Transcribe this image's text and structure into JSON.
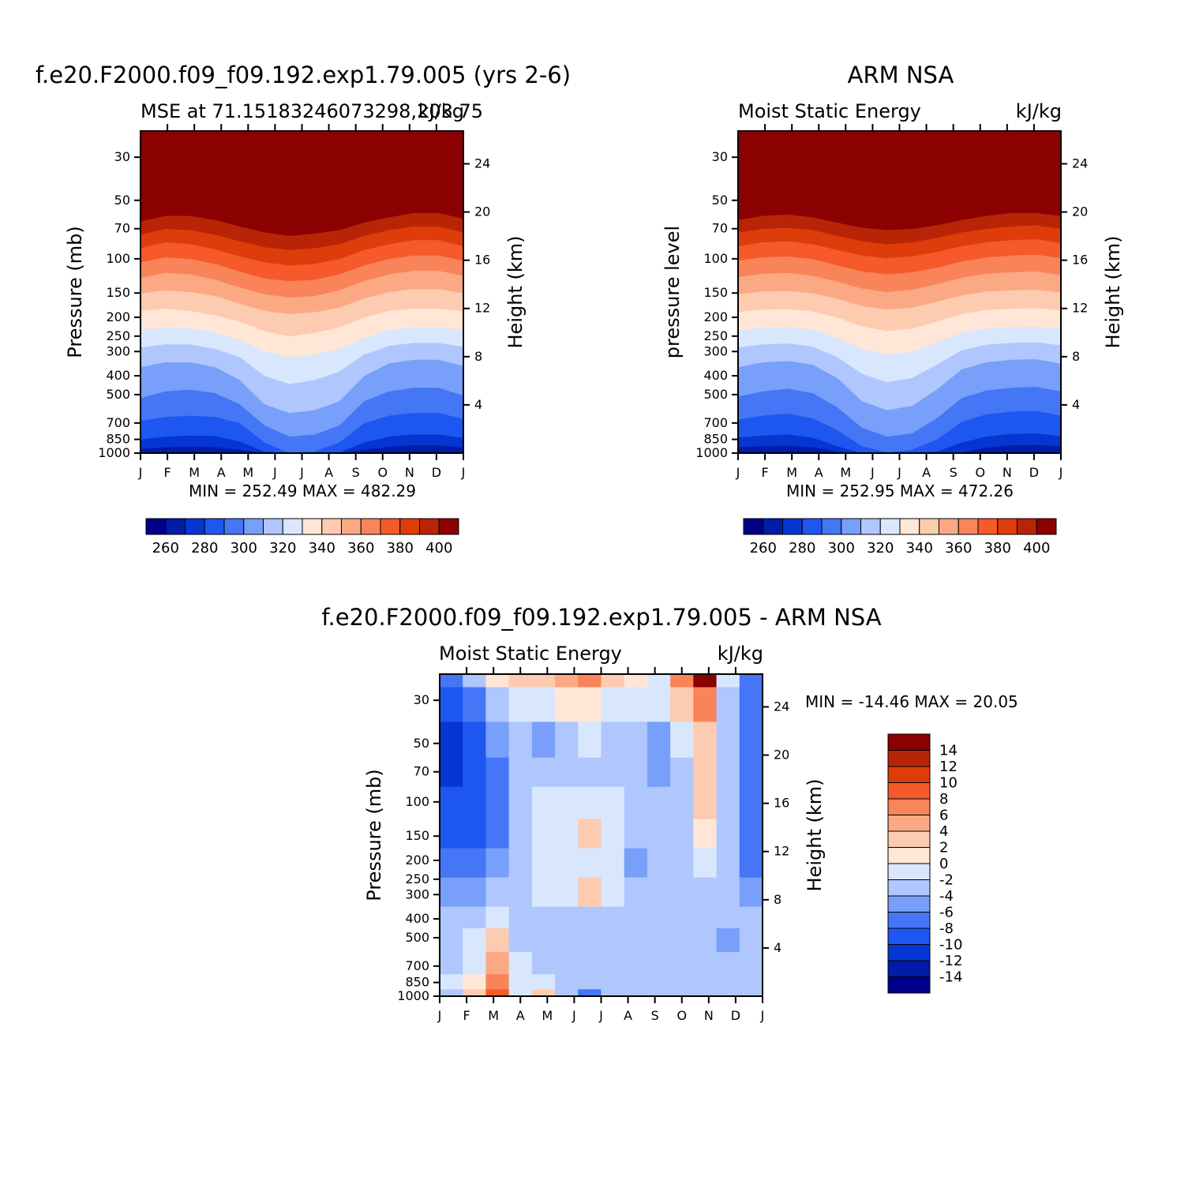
{
  "colors": {
    "mse_levels": [
      "#00008a",
      "#001ca8",
      "#0536d1",
      "#1e56f0",
      "#4476f5",
      "#789ff9",
      "#b0c7fd",
      "#d9e7fe",
      "#ffe6d6",
      "#fdcbb0",
      "#fba985",
      "#f9845a",
      "#f65a2a",
      "#df3c0b",
      "#b82406",
      "#8b0000"
    ],
    "diff_levels": [
      "#00008a",
      "#001ca8",
      "#0536d1",
      "#1e56f0",
      "#4476f5",
      "#789ff9",
      "#b0c7fd",
      "#d9e7fe",
      "#ffe6d6",
      "#fdcbb0",
      "#fba985",
      "#f9845a",
      "#f65a2a",
      "#df3c0b",
      "#b82406",
      "#8b0000"
    ]
  },
  "chart_data": [
    {
      "id": "model",
      "type": "heatmap",
      "title": "f.e20.F2000.f09_f09.192.exp1.79.005 (yrs 2-6)",
      "subtitle_left": "MSE at 71.15183246073298,203.75",
      "subtitle_right": "kJ/kg",
      "ylabel": "Pressure (mb)",
      "y2label": "Height (km)",
      "x_ticks": [
        "J",
        "F",
        "M",
        "A",
        "M",
        "J",
        "J",
        "A",
        "S",
        "O",
        "N",
        "D",
        "J"
      ],
      "y_ticks": [
        30,
        50,
        70,
        100,
        150,
        200,
        250,
        300,
        400,
        500,
        700,
        850,
        1000
      ],
      "y2_ticks": [
        4,
        8,
        12,
        16,
        20,
        24
      ],
      "minmax": "MIN = 252.49 MAX = 482.29",
      "colorbar": {
        "levels": [
          255,
          260,
          265,
          270,
          275,
          280,
          285,
          290,
          295,
          300,
          305,
          310,
          315,
          320,
          325,
          330,
          335,
          340,
          345,
          350,
          355,
          360,
          365,
          370,
          375,
          380,
          385,
          390,
          395,
          400
        ],
        "labels": [
          "260",
          "280",
          "300",
          "320",
          "340",
          "360",
          "380",
          "400"
        ]
      },
      "level_bounds_mb": [
        [
          1000,
          990,
          990,
          990,
          995,
          1000,
          1000,
          1000,
          1000,
          1000,
          995,
          985,
          985,
          990
        ],
        [
          950,
          930,
          925,
          930,
          960,
          1000,
          1000,
          1000,
          1000,
          960,
          925,
          910,
          910,
          935
        ],
        [
          850,
          820,
          810,
          815,
          870,
          980,
          1000,
          1000,
          990,
          880,
          820,
          800,
          800,
          835
        ],
        [
          680,
          650,
          640,
          650,
          700,
          880,
          1000,
          980,
          880,
          700,
          640,
          620,
          620,
          665
        ],
        [
          520,
          480,
          470,
          490,
          560,
          720,
          820,
          800,
          720,
          540,
          480,
          460,
          460,
          505
        ],
        [
          360,
          340,
          340,
          360,
          420,
          560,
          620,
          600,
          540,
          400,
          345,
          330,
          330,
          355
        ],
        [
          285,
          275,
          275,
          290,
          320,
          400,
          440,
          420,
          380,
          310,
          280,
          270,
          270,
          283
        ],
        [
          230,
          225,
          228,
          240,
          260,
          300,
          320,
          310,
          290,
          255,
          232,
          225,
          225,
          231
        ],
        [
          185,
          180,
          185,
          195,
          210,
          235,
          250,
          240,
          225,
          200,
          185,
          180,
          180,
          186
        ],
        [
          150,
          145,
          148,
          155,
          170,
          185,
          192,
          188,
          178,
          160,
          148,
          143,
          143,
          150
        ],
        [
          125,
          118,
          120,
          128,
          140,
          152,
          158,
          155,
          145,
          130,
          120,
          115,
          115,
          122
        ],
        [
          104,
          98,
          100,
          106,
          116,
          126,
          130,
          128,
          120,
          108,
          100,
          96,
          96,
          102
        ],
        [
          88,
          82,
          84,
          89,
          97,
          104,
          108,
          106,
          100,
          90,
          84,
          80,
          80,
          86
        ],
        [
          75,
          70,
          71,
          75,
          81,
          87,
          90,
          88,
          84,
          76,
          71,
          68,
          68,
          73
        ],
        [
          64,
          60,
          60,
          63,
          68,
          73,
          76,
          74,
          71,
          65,
          61,
          58,
          58,
          62
        ]
      ]
    },
    {
      "id": "obs",
      "type": "heatmap",
      "title": "ARM NSA",
      "subtitle_left": "Moist Static Energy",
      "subtitle_right": "kJ/kg",
      "ylabel": "pressure level",
      "y2label": "Height (km)",
      "x_ticks": [
        "J",
        "F",
        "M",
        "A",
        "M",
        "J",
        "J",
        "A",
        "S",
        "O",
        "N",
        "D",
        "J"
      ],
      "y_ticks": [
        30,
        50,
        70,
        100,
        150,
        200,
        250,
        300,
        400,
        500,
        700,
        850,
        1000
      ],
      "y2_ticks": [
        4,
        8,
        12,
        16,
        20,
        24
      ],
      "minmax": "MIN = 252.95 MAX = 472.26",
      "colorbar": {
        "levels": [
          255,
          260,
          265,
          270,
          275,
          280,
          285,
          290,
          295,
          300,
          305,
          310,
          315,
          320,
          325,
          330,
          335,
          340,
          345,
          350,
          355,
          360,
          365,
          370,
          375,
          380,
          385,
          390,
          395,
          400
        ],
        "labels": [
          "260",
          "280",
          "300",
          "320",
          "340",
          "360",
          "380",
          "400"
        ]
      },
      "level_bounds_mb": [
        [
          995,
          990,
          990,
          995,
          1000,
          1000,
          1000,
          1000,
          1000,
          1000,
          1000,
          995,
          990,
          995
        ],
        [
          930,
          920,
          915,
          930,
          980,
          1000,
          1000,
          1000,
          1000,
          990,
          935,
          910,
          905,
          920
        ],
        [
          830,
          810,
          800,
          830,
          920,
          1000,
          1000,
          1000,
          980,
          880,
          820,
          795,
          790,
          815
        ],
        [
          670,
          640,
          625,
          660,
          760,
          920,
          990,
          960,
          850,
          690,
          630,
          610,
          605,
          640
        ],
        [
          510,
          480,
          465,
          490,
          580,
          740,
          820,
          790,
          660,
          520,
          475,
          460,
          455,
          480
        ],
        [
          360,
          340,
          335,
          350,
          410,
          540,
          600,
          570,
          470,
          370,
          340,
          330,
          328,
          345
        ],
        [
          285,
          275,
          272,
          282,
          320,
          390,
          430,
          410,
          350,
          295,
          276,
          270,
          268,
          278
        ],
        [
          232,
          226,
          224,
          230,
          255,
          290,
          310,
          300,
          268,
          240,
          227,
          224,
          223,
          228
        ],
        [
          187,
          182,
          181,
          186,
          200,
          222,
          235,
          228,
          210,
          192,
          183,
          180,
          179,
          184
        ],
        [
          152,
          147,
          146,
          150,
          160,
          175,
          182,
          178,
          166,
          154,
          147,
          145,
          144,
          149
        ],
        [
          124,
          119,
          118,
          122,
          131,
          142,
          148,
          144,
          135,
          125,
          119,
          117,
          116,
          121
        ],
        [
          102,
          98,
          97,
          100,
          108,
          116,
          120,
          117,
          111,
          103,
          98,
          96,
          95,
          99
        ],
        [
          86,
          82,
          81,
          84,
          90,
          96,
          99,
          97,
          92,
          86,
          82,
          80,
          79,
          83
        ],
        [
          73,
          70,
          69,
          71,
          76,
          81,
          84,
          82,
          78,
          73,
          70,
          68,
          67,
          70
        ],
        [
          63,
          60,
          59,
          61,
          65,
          69,
          71,
          70,
          67,
          63,
          60,
          58,
          58,
          60
        ]
      ]
    },
    {
      "id": "diff",
      "type": "heatmap",
      "title": "f.e20.F2000.f09_f09.192.exp1.79.005 - ARM NSA",
      "subtitle_left": "Moist Static Energy",
      "subtitle_right": "kJ/kg",
      "ylabel": "Pressure (mb)",
      "y2label": "Height (km)",
      "x_ticks": [
        "J",
        "F",
        "M",
        "A",
        "M",
        "J",
        "J",
        "A",
        "S",
        "O",
        "N",
        "D",
        "J"
      ],
      "y_ticks": [
        30,
        50,
        70,
        100,
        150,
        200,
        250,
        300,
        400,
        500,
        700,
        850,
        1000
      ],
      "y2_ticks": [
        4,
        8,
        12,
        16,
        20,
        24
      ],
      "minmax": "MIN = -14.46 MAX =  20.05",
      "colorbar": {
        "levels": [
          -14,
          -12,
          -10,
          -8,
          -6,
          -4,
          -2,
          0,
          2,
          4,
          6,
          8,
          10,
          12,
          14
        ],
        "labels": [
          "14",
          "12",
          "10",
          "8",
          "6",
          "4",
          "2",
          "0",
          "-2",
          "-4",
          "-6",
          "-8",
          "-10",
          "-12",
          "-14"
        ]
      },
      "levels_mb": [
        22,
        30,
        50,
        70,
        100,
        150,
        200,
        300,
        400,
        500,
        700,
        850,
        1000
      ],
      "values": [
        [
          -8,
          -4,
          0,
          2,
          2,
          4,
          6,
          2,
          0,
          -2,
          6,
          14,
          -2,
          -8
        ],
        [
          -10,
          -8,
          -4,
          -2,
          -2,
          0,
          0,
          -2,
          -2,
          -2,
          2,
          6,
          -4,
          -8
        ],
        [
          -12,
          -10,
          -6,
          -4,
          -6,
          -4,
          -2,
          -4,
          -4,
          -6,
          -2,
          2,
          -4,
          -8
        ],
        [
          -12,
          -10,
          -8,
          -4,
          -4,
          -4,
          -4,
          -4,
          -4,
          -6,
          -4,
          2,
          -4,
          -8
        ],
        [
          -10,
          -10,
          -8,
          -4,
          -2,
          -2,
          -2,
          -2,
          -4,
          -4,
          -4,
          2,
          -4,
          -8
        ],
        [
          -10,
          -10,
          -8,
          -4,
          -2,
          -2,
          2,
          -2,
          -4,
          -4,
          -4,
          0,
          -4,
          -8
        ],
        [
          -8,
          -8,
          -6,
          -4,
          -2,
          -2,
          -2,
          -2,
          -6,
          -4,
          -4,
          -2,
          -4,
          -8
        ],
        [
          -6,
          -6,
          -4,
          -4,
          -2,
          -2,
          2,
          -2,
          -4,
          -4,
          -4,
          -4,
          -4,
          -6
        ],
        [
          -4,
          -4,
          -2,
          -4,
          -4,
          -4,
          -4,
          -4,
          -4,
          -4,
          -4,
          -4,
          -4,
          -4
        ],
        [
          -4,
          -2,
          2,
          -4,
          -4,
          -4,
          -4,
          -4,
          -4,
          -4,
          -4,
          -4,
          -6,
          -4
        ],
        [
          -4,
          -2,
          4,
          -2,
          -4,
          -4,
          -4,
          -4,
          -4,
          -4,
          -4,
          -4,
          -4,
          -4
        ],
        [
          -2,
          0,
          6,
          -2,
          -2,
          -4,
          -4,
          -4,
          -4,
          -4,
          -4,
          -4,
          -4,
          -4
        ],
        [
          -4,
          2,
          8,
          -2,
          2,
          -4,
          -8,
          -4,
          -4,
          -4,
          -4,
          -4,
          -4,
          -4
        ]
      ]
    }
  ]
}
